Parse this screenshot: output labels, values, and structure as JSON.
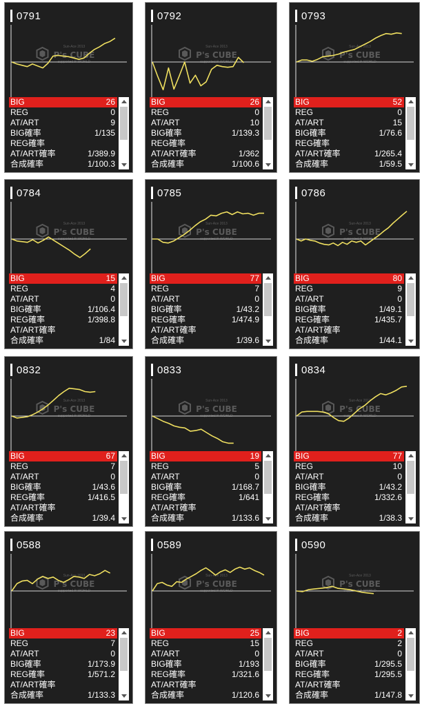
{
  "labels": {
    "big": "BIG",
    "reg": "REG",
    "at": "AT/ART",
    "big_rate": "BIG確率",
    "reg_rate": "REG確率",
    "at_rate": "AT/ART確率",
    "total_rate": "合成確率"
  },
  "watermark": {
    "top": "Sun-Ace 2013",
    "main": "P's CUBE",
    "sub": "supported P-WORLD"
  },
  "colors": {
    "big_bar": "#e0201c",
    "graph_line": "#f0e060",
    "card_bg": "#1f1f1f"
  },
  "machines": [
    {
      "id": "0791",
      "big": "26",
      "reg": "0",
      "at": "9",
      "big_rate": "1/135",
      "reg_rate": "",
      "at_rate": "1/389.9",
      "total_rate": "1/100.3",
      "chart_data": {
        "type": "line",
        "x": [
          0,
          1,
          2,
          3,
          4,
          5,
          6,
          7,
          8,
          9,
          10,
          11,
          12,
          13,
          14,
          15,
          16,
          17,
          18,
          19,
          20
        ],
        "y": [
          0,
          -300,
          -500,
          -700,
          -300,
          -600,
          -900,
          -200,
          900,
          1000,
          900,
          800,
          600,
          400,
          600,
          1300,
          1900,
          2300,
          2800,
          3100,
          3600
        ]
      }
    },
    {
      "id": "0792",
      "big": "26",
      "reg": "0",
      "at": "10",
      "big_rate": "1/139.3",
      "reg_rate": "",
      "at_rate": "1/362",
      "total_rate": "1/100.6",
      "chart_data": {
        "type": "line",
        "x": [
          0,
          1,
          2,
          3,
          4,
          5,
          6,
          7,
          8,
          9,
          10,
          11,
          12,
          13,
          14,
          15,
          16,
          17
        ],
        "y": [
          0,
          -2200,
          -4200,
          -900,
          -4100,
          -2100,
          0,
          -3200,
          -2000,
          -3600,
          -3000,
          -1100,
          -500,
          -700,
          -800,
          -700,
          700,
          -100
        ]
      }
    },
    {
      "id": "0793",
      "big": "52",
      "reg": "0",
      "at": "15",
      "big_rate": "1/76.6",
      "reg_rate": "",
      "at_rate": "1/265.4",
      "total_rate": "1/59.5",
      "chart_data": {
        "type": "line",
        "x": [
          0,
          1,
          2,
          3,
          4,
          5,
          6,
          7,
          8,
          9,
          10,
          11,
          12,
          13,
          14,
          15,
          16,
          17,
          18,
          19,
          20
        ],
        "y": [
          0,
          300,
          300,
          100,
          400,
          800,
          900,
          1000,
          1200,
          1500,
          1700,
          1900,
          2300,
          2700,
          3100,
          3600,
          4000,
          4300,
          4200,
          4400,
          4300
        ]
      }
    },
    {
      "id": "0784",
      "big": "15",
      "reg": "4",
      "at": "0",
      "big_rate": "1/106.4",
      "reg_rate": "1/398.8",
      "at_rate": "",
      "total_rate": "1/84",
      "chart_data": {
        "type": "line",
        "x": [
          0,
          1,
          2,
          3,
          4,
          5,
          6,
          7,
          8,
          9,
          10,
          11,
          12,
          13,
          14,
          15
        ],
        "y": [
          0,
          -300,
          -400,
          -500,
          -100,
          -600,
          -200,
          300,
          -200,
          -700,
          -1200,
          -1700,
          -2300,
          -2800,
          -2200,
          -1500
        ]
      }
    },
    {
      "id": "0785",
      "big": "77",
      "reg": "7",
      "at": "0",
      "big_rate": "1/43.2",
      "reg_rate": "1/474.9",
      "at_rate": "",
      "total_rate": "1/39.6",
      "chart_data": {
        "type": "line",
        "x": [
          0,
          1,
          2,
          3,
          4,
          5,
          6,
          7,
          8,
          9,
          10,
          11,
          12,
          13,
          14,
          15,
          16,
          17,
          18,
          19,
          20,
          21
        ],
        "y": [
          0,
          0,
          -500,
          -600,
          -300,
          200,
          700,
          1300,
          2000,
          2600,
          3000,
          3600,
          3500,
          3900,
          4100,
          3700,
          4100,
          3800,
          3900,
          3600,
          3900,
          3900
        ]
      }
    },
    {
      "id": "0786",
      "big": "80",
      "reg": "9",
      "at": "0",
      "big_rate": "1/49.1",
      "reg_rate": "1/435.7",
      "at_rate": "",
      "total_rate": "1/44.1",
      "chart_data": {
        "type": "line",
        "x": [
          0,
          1,
          2,
          3,
          4,
          5,
          6,
          7,
          8,
          9,
          10,
          11,
          12,
          13,
          14,
          15,
          16,
          17,
          18,
          19,
          20,
          21,
          22,
          23,
          24
        ],
        "y": [
          0,
          -300,
          0,
          -200,
          -300,
          -600,
          -800,
          -900,
          -600,
          -1000,
          -500,
          -800,
          -300,
          -500,
          -300,
          -900,
          -400,
          100,
          600,
          1200,
          1700,
          2400,
          3000,
          3600,
          4200
        ]
      }
    },
    {
      "id": "0832",
      "big": "67",
      "reg": "7",
      "at": "0",
      "big_rate": "1/43.6",
      "reg_rate": "1/416.5",
      "at_rate": "",
      "total_rate": "1/39.4",
      "chart_data": {
        "type": "line",
        "x": [
          0,
          1,
          2,
          3,
          4,
          5,
          6,
          7,
          8,
          9,
          10,
          11,
          12,
          13,
          14,
          15,
          16
        ],
        "y": [
          0,
          -300,
          -200,
          -100,
          200,
          600,
          1100,
          1700,
          2400,
          3100,
          3700,
          4200,
          4100,
          4000,
          3700,
          3600,
          3700
        ]
      }
    },
    {
      "id": "0833",
      "big": "19",
      "reg": "5",
      "at": "0",
      "big_rate": "1/168.7",
      "reg_rate": "1/641",
      "at_rate": "",
      "total_rate": "1/133.6",
      "chart_data": {
        "type": "line",
        "x": [
          0,
          1,
          2,
          3,
          4,
          5,
          6,
          7,
          8,
          9,
          10,
          11,
          12,
          13,
          14,
          15
        ],
        "y": [
          0,
          -400,
          -800,
          -1100,
          -1500,
          -1700,
          -1800,
          -2300,
          -2200,
          -2000,
          -2500,
          -3000,
          -3400,
          -3900,
          -4100,
          -4100
        ]
      }
    },
    {
      "id": "0834",
      "big": "77",
      "reg": "10",
      "at": "0",
      "big_rate": "1/43.2",
      "reg_rate": "1/332.6",
      "at_rate": "",
      "total_rate": "1/38.3",
      "chart_data": {
        "type": "line",
        "x": [
          0,
          1,
          2,
          3,
          4,
          5,
          6,
          7,
          8,
          9,
          10,
          11,
          12,
          13,
          14,
          15,
          16,
          17,
          18,
          19,
          20,
          21
        ],
        "y": [
          0,
          600,
          700,
          700,
          700,
          600,
          400,
          -200,
          -700,
          -800,
          -300,
          400,
          1100,
          1600,
          2300,
          2900,
          3400,
          3200,
          3500,
          3900,
          4400,
          4500
        ]
      }
    },
    {
      "id": "0588",
      "big": "23",
      "reg": "7",
      "at": "0",
      "big_rate": "1/173.9",
      "reg_rate": "1/571.2",
      "at_rate": "",
      "total_rate": "1/133.3",
      "chart_data": {
        "type": "line",
        "x": [
          0,
          1,
          2,
          3,
          4,
          5,
          6,
          7,
          8,
          9,
          10,
          11,
          12,
          13,
          14,
          15,
          16,
          17,
          18,
          19
        ],
        "y": [
          0,
          1100,
          1500,
          1600,
          1100,
          1800,
          2200,
          1900,
          2100,
          1600,
          1300,
          1700,
          2200,
          2100,
          1900,
          2500,
          2300,
          2600,
          3100,
          2700
        ]
      }
    },
    {
      "id": "0589",
      "big": "25",
      "reg": "15",
      "at": "0",
      "big_rate": "1/193",
      "reg_rate": "1/321.6",
      "at_rate": "",
      "total_rate": "1/120.6",
      "chart_data": {
        "type": "line",
        "x": [
          0,
          1,
          2,
          3,
          4,
          5,
          6,
          7,
          8,
          9,
          10,
          11,
          12,
          13,
          14,
          15,
          16,
          17,
          18,
          19,
          20,
          21,
          22,
          23
        ],
        "y": [
          0,
          1100,
          1300,
          900,
          700,
          1400,
          1300,
          1800,
          2200,
          2600,
          3100,
          3500,
          3000,
          2400,
          2900,
          3200,
          2800,
          3300,
          3600,
          3300,
          3500,
          3100,
          2800,
          2400
        ]
      }
    },
    {
      "id": "0590",
      "big": "2",
      "reg": "2",
      "at": "0",
      "big_rate": "1/295.5",
      "reg_rate": "1/295.5",
      "at_rate": "",
      "total_rate": "1/147.8",
      "chart_data": {
        "type": "line",
        "x": [
          0,
          1,
          2,
          3,
          4,
          5,
          6,
          7,
          8,
          9,
          10,
          11,
          12,
          13
        ],
        "y": [
          0,
          -100,
          200,
          300,
          400,
          500,
          700,
          400,
          300,
          200,
          0,
          -200,
          -300,
          -400
        ]
      }
    }
  ]
}
